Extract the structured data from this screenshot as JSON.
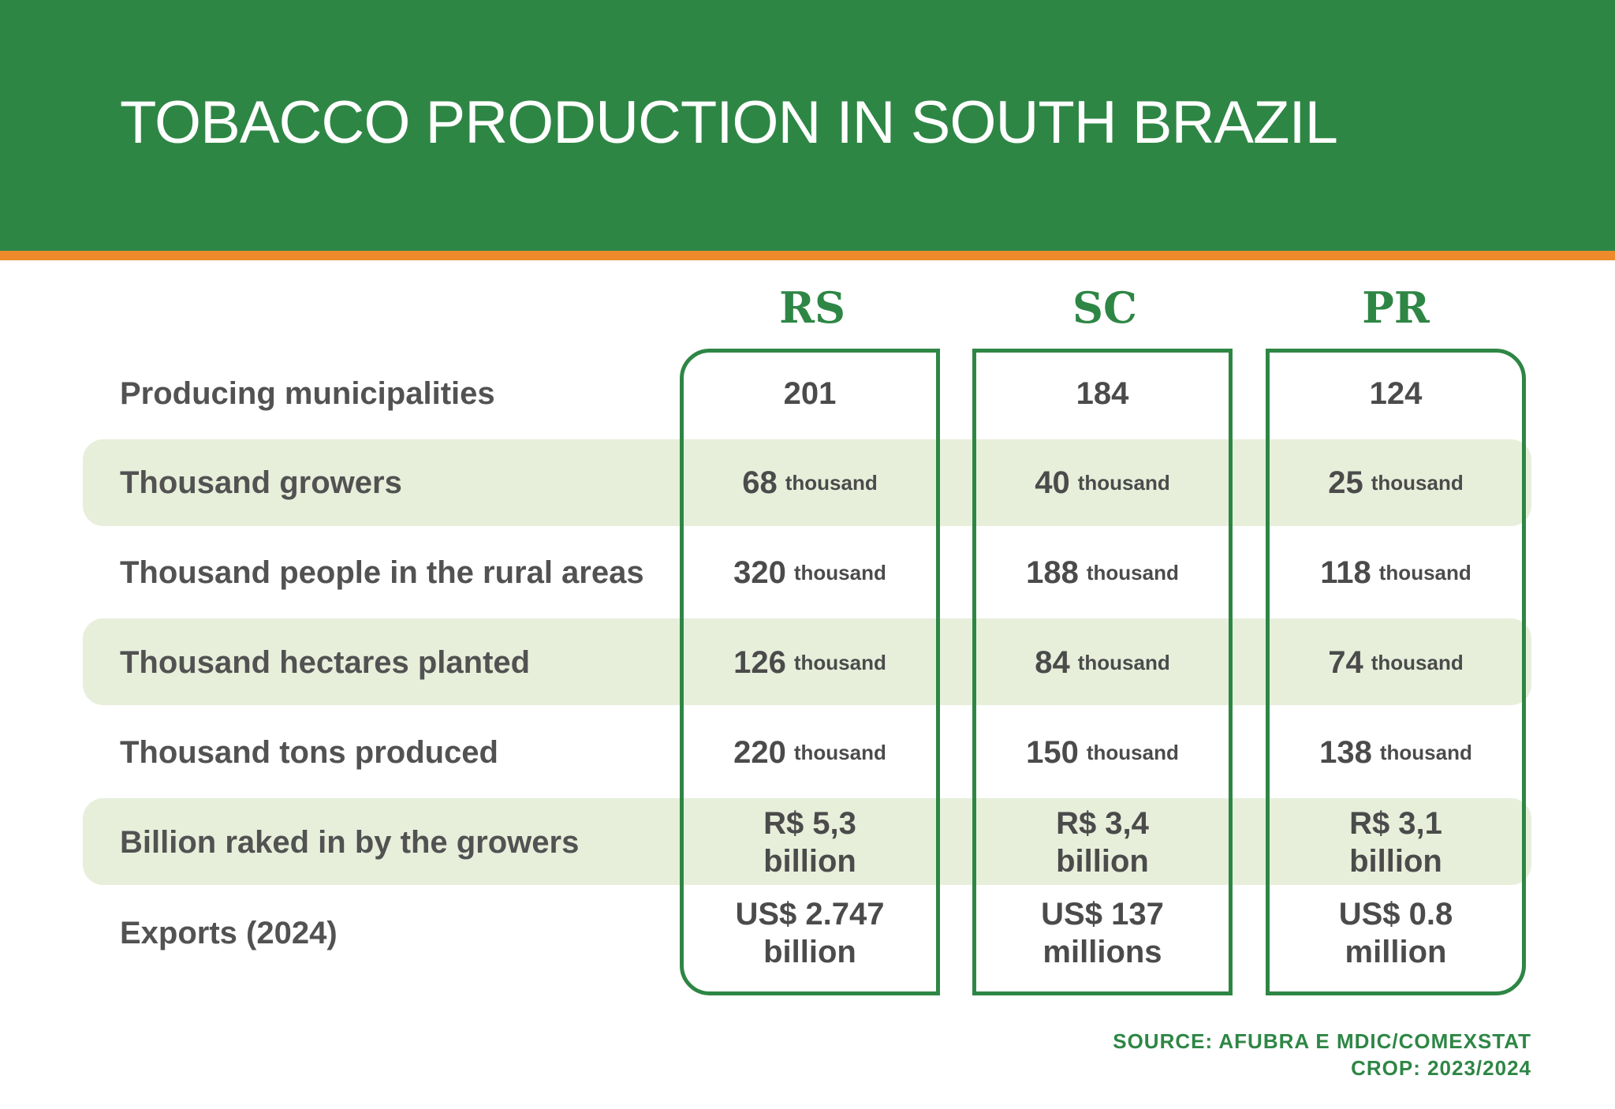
{
  "header": {
    "title": "TOBACCO PRODUCTION IN SOUTH BRAZIL"
  },
  "colors": {
    "green": "#2e8645",
    "orange": "#ee8a2c",
    "band": "#e7efdb",
    "text": "#525252"
  },
  "chart_data": {
    "type": "table",
    "title": "TOBACCO PRODUCTION IN SOUTH BRAZIL",
    "columns": [
      "RS",
      "SC",
      "PR"
    ],
    "rows": [
      {
        "label": "Producing municipalities",
        "cells": [
          {
            "num": "201"
          },
          {
            "num": "184"
          },
          {
            "num": "124"
          }
        ]
      },
      {
        "label": "Thousand growers",
        "cells": [
          {
            "num": "68",
            "unit": "thousand"
          },
          {
            "num": "40",
            "unit": "thousand"
          },
          {
            "num": "25",
            "unit": "thousand"
          }
        ]
      },
      {
        "label": "Thousand people in the rural areas",
        "cells": [
          {
            "num": "320",
            "unit": "thousand"
          },
          {
            "num": "188",
            "unit": "thousand"
          },
          {
            "num": "118",
            "unit": "thousand"
          }
        ]
      },
      {
        "label": "Thousand hectares planted",
        "cells": [
          {
            "num": "126",
            "unit": "thousand"
          },
          {
            "num": "84",
            "unit": "thousand"
          },
          {
            "num": "74",
            "unit": "thousand"
          }
        ]
      },
      {
        "label": "Thousand tons produced",
        "cells": [
          {
            "num": "220",
            "unit": "thousand"
          },
          {
            "num": "150",
            "unit": "thousand"
          },
          {
            "num": "138",
            "unit": "thousand"
          }
        ]
      },
      {
        "label": "Billion raked in by the growers",
        "cells": [
          {
            "line1": "R$ 5,3",
            "line2": "billion"
          },
          {
            "line1": "R$ 3,4",
            "line2": "billion"
          },
          {
            "line1": "R$ 3,1",
            "line2": "billion"
          }
        ]
      },
      {
        "label": "Exports (2024)",
        "cells": [
          {
            "line1": "US$ 2.747",
            "line2": "billion"
          },
          {
            "line1": "US$ 137",
            "line2": "millions"
          },
          {
            "line1": "US$ 0.8",
            "line2": "million"
          }
        ]
      }
    ]
  },
  "footer": {
    "source": "SOURCE: AFUBRA E MDIC/COMEXSTAT",
    "crop": "CROP: 2023/2024"
  }
}
